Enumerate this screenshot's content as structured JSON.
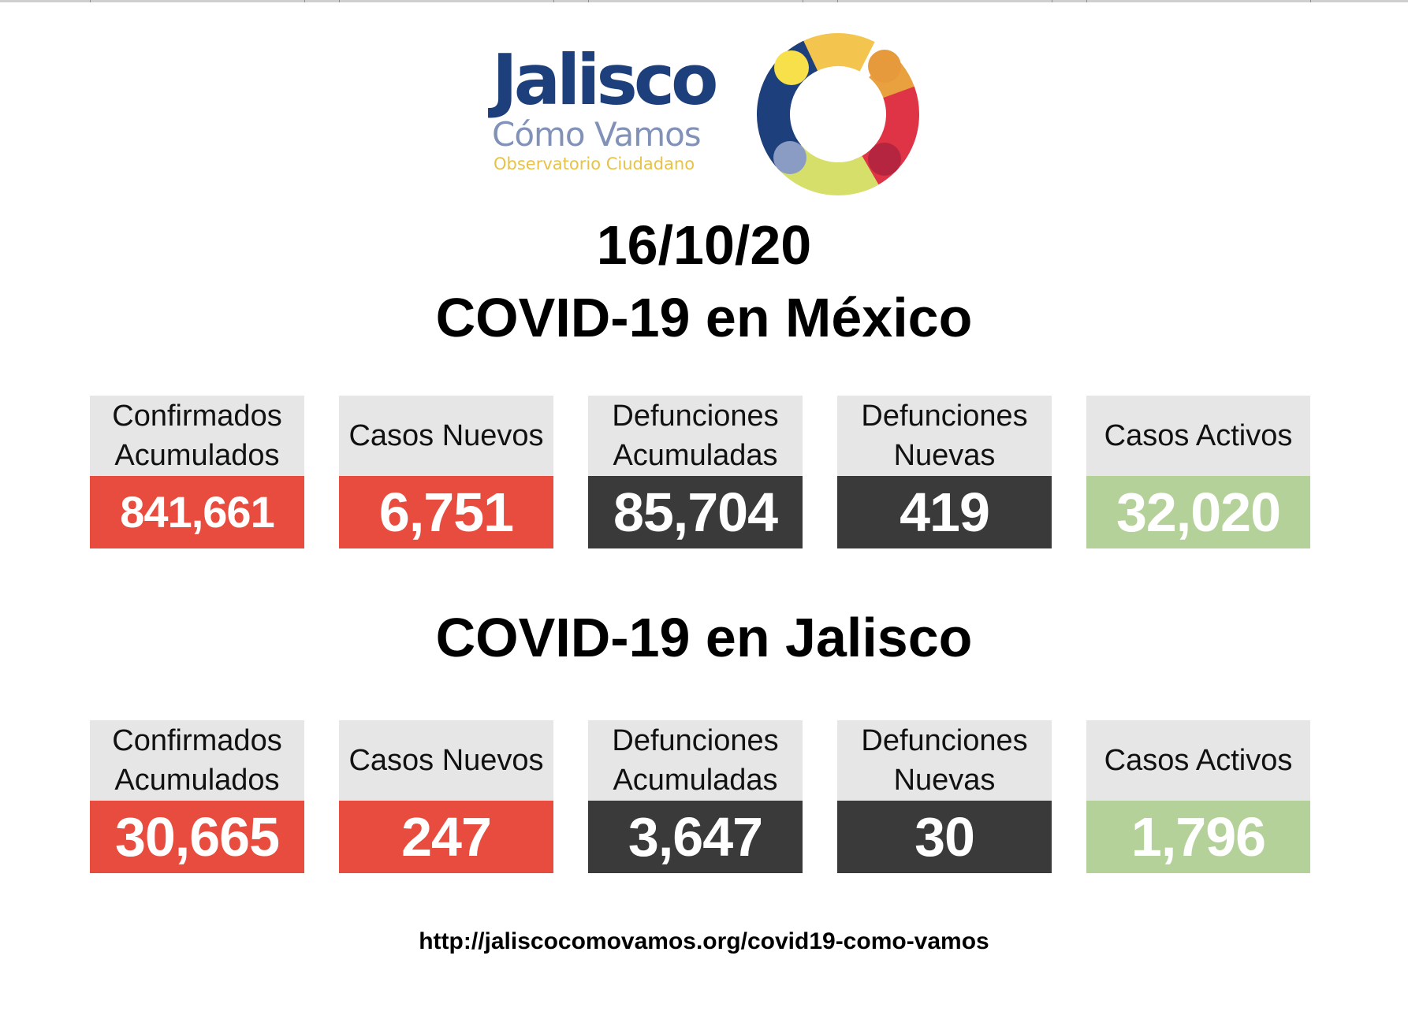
{
  "logo": {
    "title": "Jalisco",
    "subtitle": "Cómo Vamos",
    "tagline": "Observatorio Ciudadano",
    "colors": {
      "navy": "#1d3f7b",
      "periwinkle": "#8191b8",
      "yellow": "#f4c54e",
      "orange": "#e9a13f",
      "red": "#df3446",
      "lime": "#d7df6b"
    }
  },
  "date": "16/10/20",
  "mexico": {
    "title": "COVID-19 en México",
    "stats": [
      {
        "label": "Confirmados\nAcumulados",
        "value": "841,661"
      },
      {
        "label": "Casos Nuevos",
        "value": "6,751"
      },
      {
        "label": "Defunciones\nAcumuladas",
        "value": "85,704"
      },
      {
        "label": "Defunciones\nNuevas",
        "value": "419"
      },
      {
        "label": "Casos Activos",
        "value": "32,020"
      }
    ]
  },
  "jalisco": {
    "title": "COVID-19 en Jalisco",
    "stats": [
      {
        "label": "Confirmados\nAcumulados",
        "value": "30,665"
      },
      {
        "label": "Casos Nuevos",
        "value": "247"
      },
      {
        "label": "Defunciones\nAcumuladas",
        "value": "3,647"
      },
      {
        "label": "Defunciones\nNuevas",
        "value": "30"
      },
      {
        "label": "Casos Activos",
        "value": "1,796"
      }
    ]
  },
  "colors": {
    "red": "#e84c3f",
    "dark": "#3a3a3a",
    "green": "#b4d19a",
    "label_bg": "#e6e6e6"
  },
  "footer": {
    "url": "http://jaliscocomovamos.org/covid19-como-vamos"
  }
}
